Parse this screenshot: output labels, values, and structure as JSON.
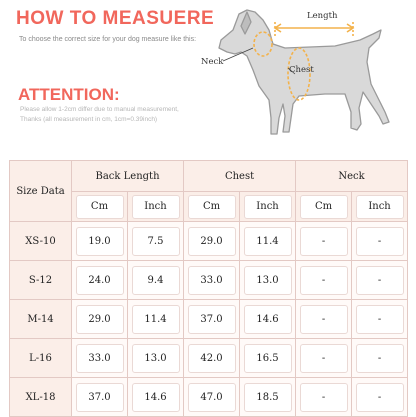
{
  "header": {
    "title": "HOW TO MEASUERE",
    "subtitle": "To choose the correct size for your dog measure like this:"
  },
  "attention": {
    "title": "ATTENTION:",
    "note_line1": "Please allow 1-2cm differ due to manual measurement,",
    "note_line2": "Thanks (all measurement in cm, 1cm=0.39inch)"
  },
  "diagram": {
    "length_label": "Length",
    "neck_label": "Neck",
    "chest_label": "Chest",
    "colors": {
      "arrow": "#f3b24b",
      "dog_outline": "#9a9a9a",
      "dog_fill": "#d9d9d9"
    }
  },
  "table": {
    "corner_label": "Size Data",
    "groups": [
      "Back Length",
      "Chest",
      "Neck"
    ],
    "units": [
      "Cm",
      "Inch",
      "Cm",
      "Inch",
      "Cm",
      "Inch"
    ],
    "rows": [
      {
        "size": "XS-10",
        "cells": [
          "19.0",
          "7.5",
          "29.0",
          "11.4",
          "-",
          "-"
        ]
      },
      {
        "size": "S-12",
        "cells": [
          "24.0",
          "9.4",
          "33.0",
          "13.0",
          "-",
          "-"
        ]
      },
      {
        "size": "M-14",
        "cells": [
          "29.0",
          "11.4",
          "37.0",
          "14.6",
          "-",
          "-"
        ]
      },
      {
        "size": "L-16",
        "cells": [
          "33.0",
          "13.0",
          "42.0",
          "16.5",
          "-",
          "-"
        ]
      },
      {
        "size": "XL-18",
        "cells": [
          "37.0",
          "14.6",
          "47.0",
          "18.5",
          "-",
          "-"
        ]
      }
    ]
  },
  "colors": {
    "accent": "#f1675c",
    "header_bg": "#fbeee8",
    "border": "#e3c9c4"
  }
}
